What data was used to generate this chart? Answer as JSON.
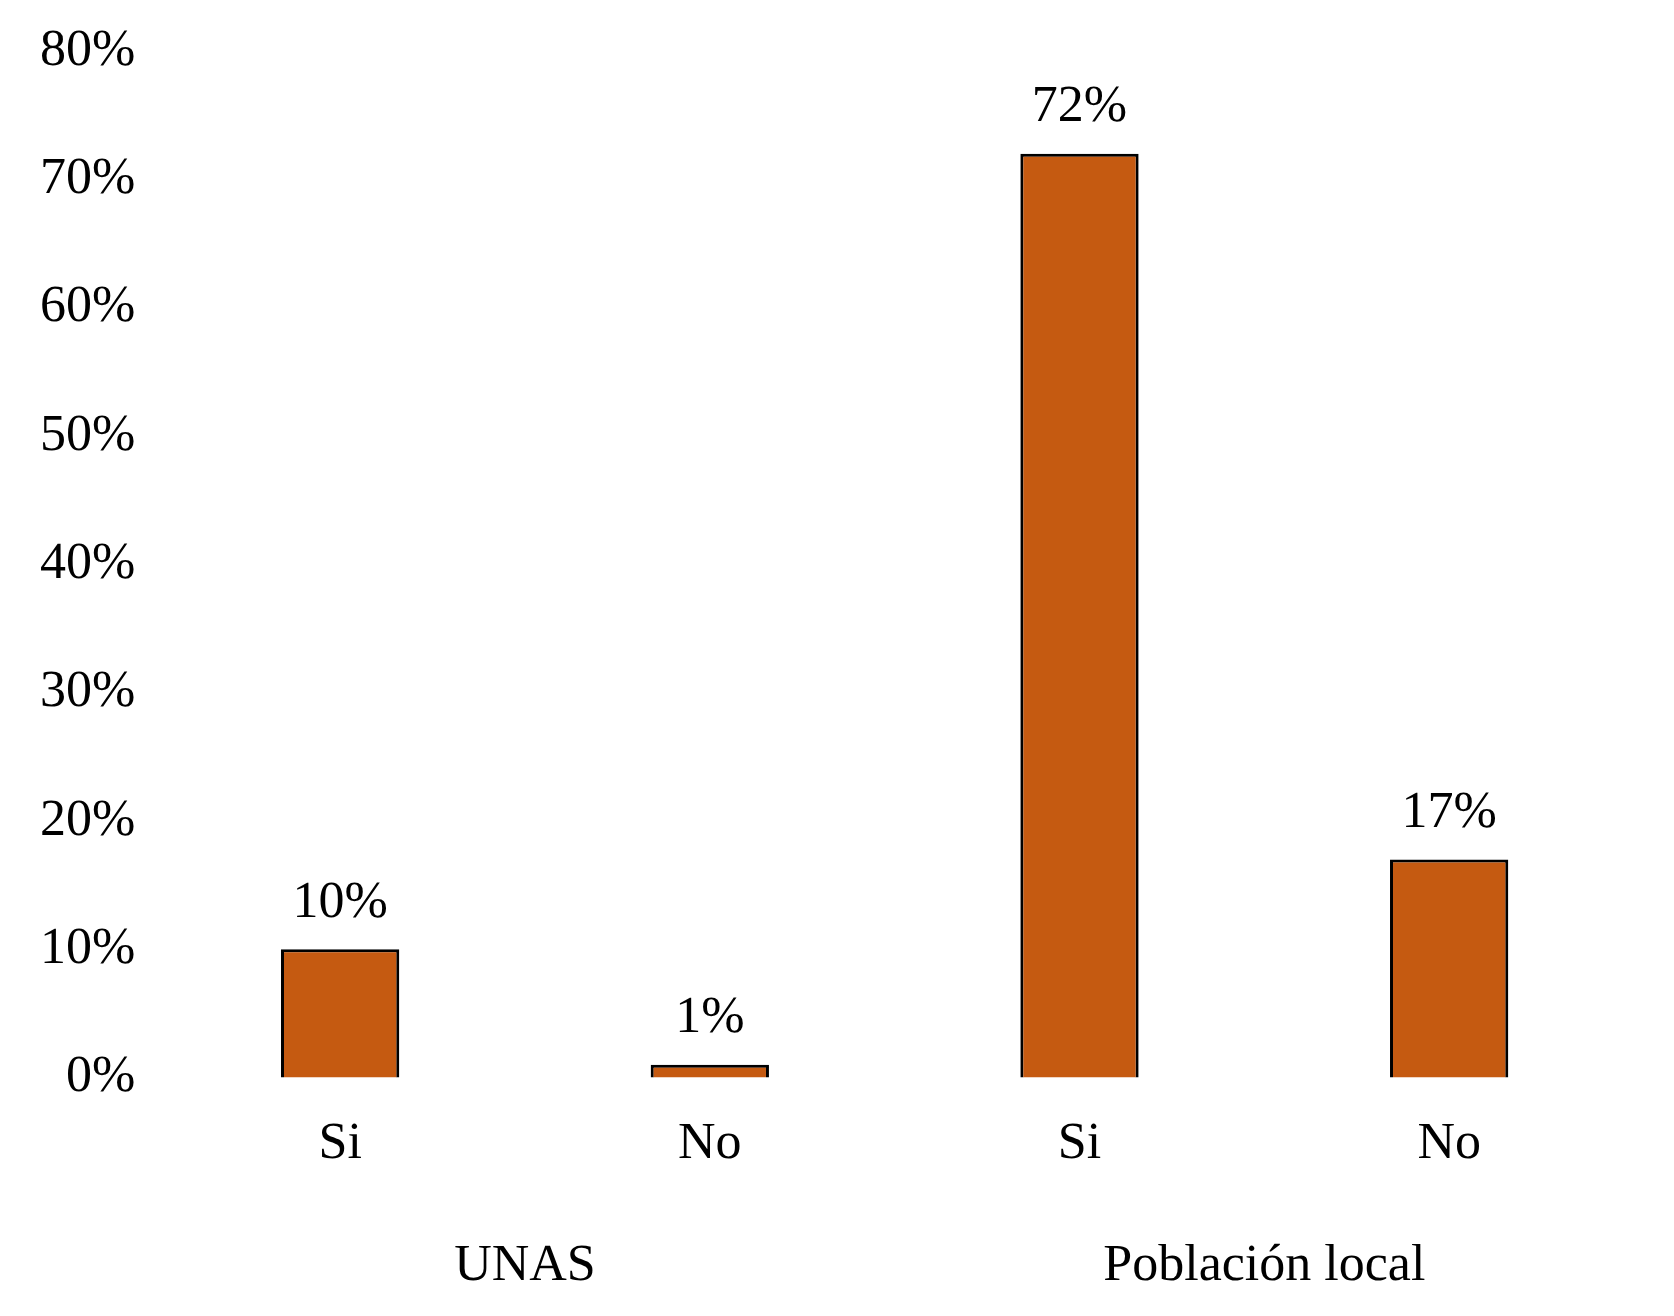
{
  "chart_data": {
    "type": "bar",
    "categories": [
      "Si",
      "No",
      "Si",
      "No"
    ],
    "values": [
      10,
      1,
      72,
      17
    ],
    "color": "#c55a11",
    "ylim": [
      0,
      80
    ],
    "yticks": [
      {
        "value": 0,
        "label": "0%"
      },
      {
        "value": 10,
        "label": "10%"
      },
      {
        "value": 20,
        "label": "20%"
      },
      {
        "value": 30,
        "label": "30%"
      },
      {
        "value": 40,
        "label": "40%"
      },
      {
        "value": 50,
        "label": "50%"
      },
      {
        "value": 60,
        "label": "60%"
      },
      {
        "value": 70,
        "label": "70%"
      },
      {
        "value": 80,
        "label": "80%"
      }
    ],
    "value_labels": [
      "10%",
      "1%",
      "72%",
      "17%"
    ],
    "annotations": [
      "UNAS",
      "Población local"
    ],
    "grid": false,
    "legend": false
  }
}
